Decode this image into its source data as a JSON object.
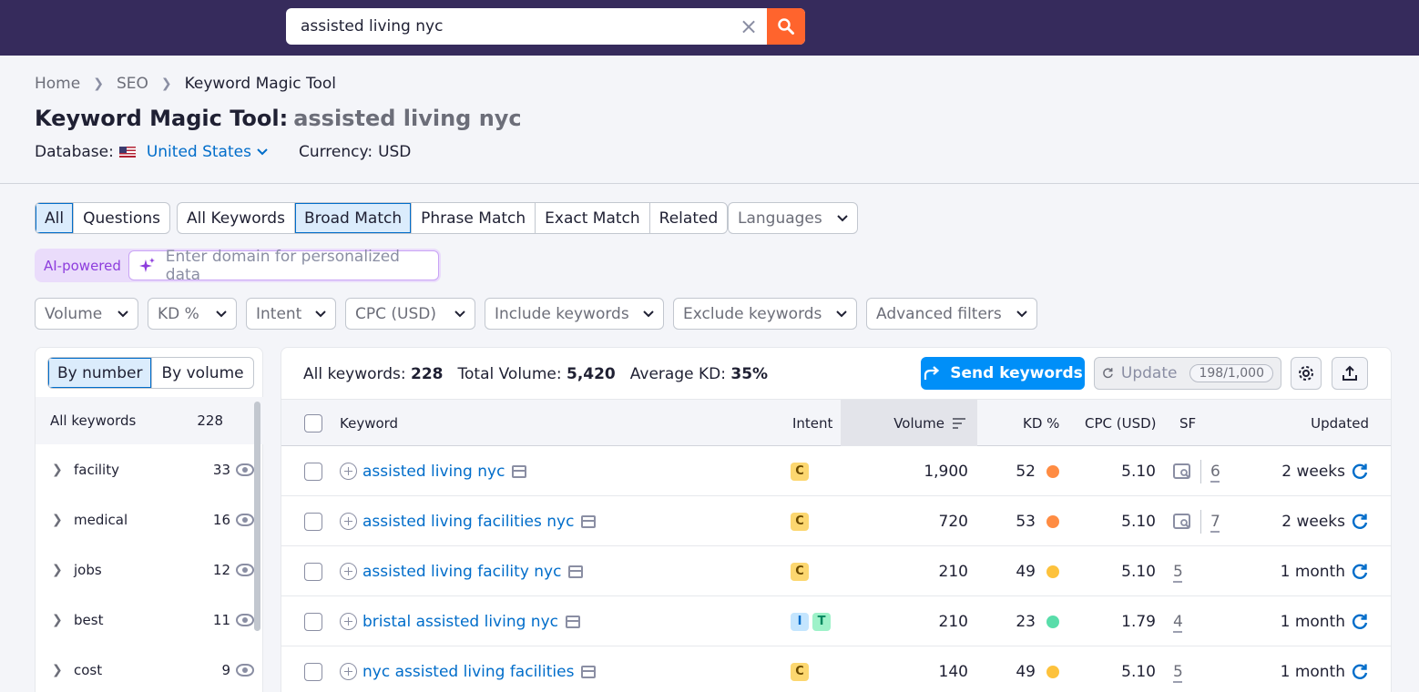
{
  "search": {
    "value": "assisted living nyc"
  },
  "breadcrumb": {
    "home": "Home",
    "seo": "SEO",
    "current": "Keyword Magic Tool"
  },
  "title": {
    "prefix": "Keyword Magic Tool:",
    "query": "assisted living nyc"
  },
  "database": {
    "label": "Database:",
    "value": "United States"
  },
  "currency": {
    "label": "Currency:",
    "value": "USD"
  },
  "question_tabs": [
    "All",
    "Questions"
  ],
  "match_tabs": [
    "All Keywords",
    "Broad Match",
    "Phrase Match",
    "Exact Match",
    "Related"
  ],
  "languages": "Languages",
  "ai": {
    "label": "AI-powered",
    "placeholder": "Enter domain for personalized data"
  },
  "filters": [
    "Volume",
    "KD %",
    "Intent",
    "CPC (USD)",
    "Include keywords",
    "Exclude keywords",
    "Advanced filters"
  ],
  "side": {
    "toggle": [
      "By number",
      "By volume"
    ],
    "all_label": "All keywords",
    "all_count": "228",
    "items": [
      {
        "label": "facility",
        "count": "33"
      },
      {
        "label": "medical",
        "count": "16"
      },
      {
        "label": "jobs",
        "count": "12"
      },
      {
        "label": "best",
        "count": "11"
      },
      {
        "label": "cost",
        "count": "9"
      }
    ]
  },
  "stats": {
    "all_label": "All keywords:",
    "all_value": "228",
    "vol_label": "Total Volume:",
    "vol_value": "5,420",
    "kd_label": "Average KD:",
    "kd_value": "35%"
  },
  "actions": {
    "send": "Send keywords",
    "update": "Update",
    "quota": "198/1,000"
  },
  "columns": {
    "keyword": "Keyword",
    "intent": "Intent",
    "volume": "Volume",
    "kd": "KD %",
    "cpc": "CPC (USD)",
    "sf": "SF",
    "updated": "Updated"
  },
  "colors": {
    "kd_orange": "#ff8c43",
    "kd_yellow": "#fdc23c",
    "kd_green": "#59ddaa",
    "intent_c": "#fcd770",
    "intent_i": "#c4e5fe",
    "intent_t": "#9ef2c9"
  },
  "rows": [
    {
      "keyword": "assisted living nyc",
      "intents": [
        "C"
      ],
      "volume": "1,900",
      "kd": "52",
      "kd_color": "orange",
      "cpc": "5.10",
      "sf": "6",
      "sf_icon": true,
      "updated": "2 weeks"
    },
    {
      "keyword": "assisted living facilities nyc",
      "intents": [
        "C"
      ],
      "volume": "720",
      "kd": "53",
      "kd_color": "orange",
      "cpc": "5.10",
      "sf": "7",
      "sf_icon": true,
      "updated": "2 weeks"
    },
    {
      "keyword": "assisted living facility nyc",
      "intents": [
        "C"
      ],
      "volume": "210",
      "kd": "49",
      "kd_color": "yellow",
      "cpc": "5.10",
      "sf": "5",
      "sf_icon": false,
      "updated": "1 month"
    },
    {
      "keyword": "bristal assisted living nyc",
      "intents": [
        "I",
        "T"
      ],
      "volume": "210",
      "kd": "23",
      "kd_color": "green",
      "cpc": "1.79",
      "sf": "4",
      "sf_icon": false,
      "updated": "1 month"
    },
    {
      "keyword": "nyc assisted living facilities",
      "intents": [
        "C"
      ],
      "volume": "140",
      "kd": "49",
      "kd_color": "yellow",
      "cpc": "5.10",
      "sf": "5",
      "sf_icon": false,
      "updated": "1 month"
    }
  ]
}
